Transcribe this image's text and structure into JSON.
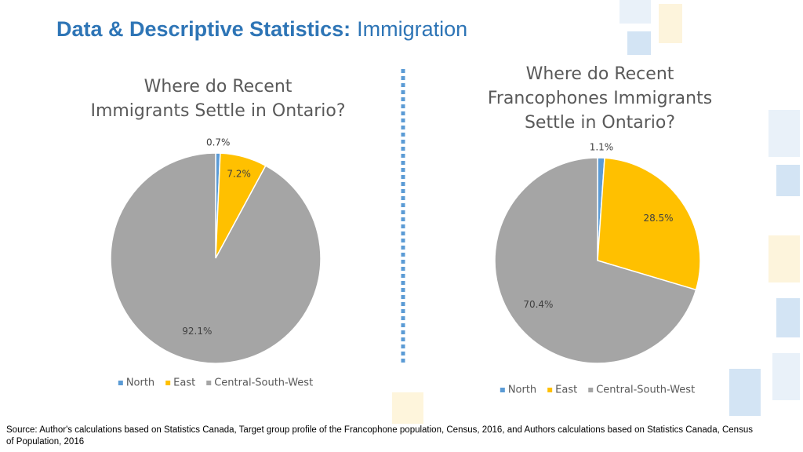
{
  "header": {
    "title_bold": "Data & Descriptive Statistics:",
    "title_rest": "Immigration"
  },
  "chart_data": [
    {
      "type": "pie",
      "title": [
        "Where do Recent",
        "Immigrants Settle in Ontario?"
      ],
      "categories": [
        "North",
        "East",
        "Central-South-West"
      ],
      "values": [
        0.7,
        7.2,
        92.1
      ],
      "value_labels": [
        "0.7%",
        "7.2%",
        "92.1%"
      ],
      "colors": [
        "#5b9bd5",
        "#ffc000",
        "#a5a5a5"
      ],
      "legend": "bottom"
    },
    {
      "type": "pie",
      "title": [
        "Where do Recent",
        "Francophones Immigrants",
        "Settle in Ontario?"
      ],
      "categories": [
        "North",
        "East",
        "Central-South-West"
      ],
      "values": [
        1.1,
        28.5,
        70.4
      ],
      "value_labels": [
        "1.1%",
        "28.5%",
        "70.4%"
      ],
      "colors": [
        "#5b9bd5",
        "#ffc000",
        "#a5a5a5"
      ],
      "legend": "bottom"
    }
  ],
  "source": "Source: Author's calculations based on Statistics Canada, Target group profile of the Francophone population, Census, 2016, and Authors calculations based on Statistics Canada, Census of Population, 2016"
}
